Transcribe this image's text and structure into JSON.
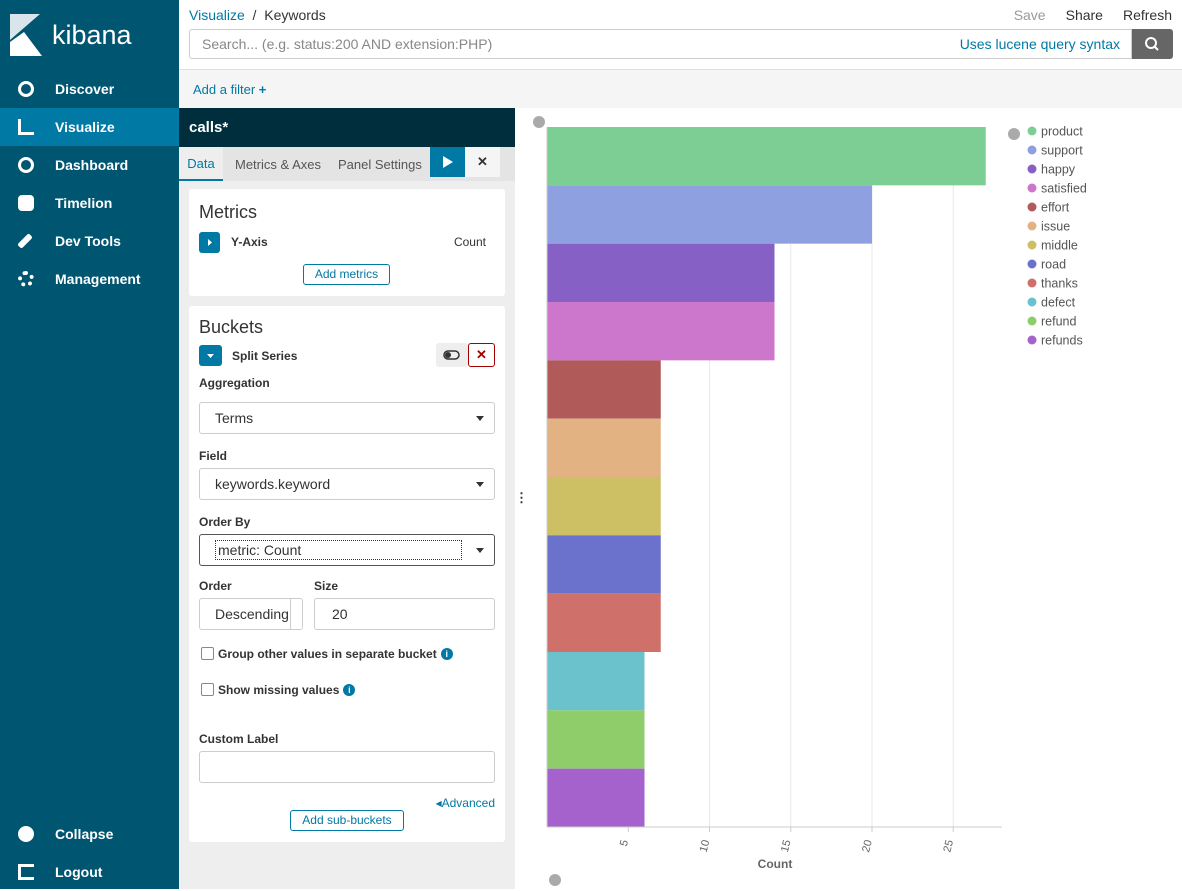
{
  "sidebar": {
    "brand": "kibana",
    "nav": [
      "Discover",
      "Visualize",
      "Dashboard",
      "Timelion",
      "Dev Tools",
      "Management"
    ],
    "footer": [
      "Collapse",
      "Logout"
    ]
  },
  "header": {
    "breadcrumbs": [
      "Visualize",
      "Keywords"
    ],
    "actions": [
      "Save",
      "Share",
      "Refresh"
    ],
    "search_placeholder": "Search... (e.g. status:200 AND extension:PHP)",
    "query_syntax": "Uses lucene query syntax",
    "add_filter": "Add a filter"
  },
  "editor": {
    "index": "calls*",
    "tabs": [
      "Data",
      "Metrics & Axes",
      "Panel Settings"
    ],
    "metrics": {
      "title": "Metrics",
      "axis": "Y-Axis",
      "aggregation": "Count",
      "add_button": "Add metrics"
    },
    "buckets": {
      "title": "Buckets",
      "type": "Split Series",
      "aggregation_label": "Aggregation",
      "aggregation": "Terms",
      "field_label": "Field",
      "field": "keywords.keyword",
      "order_by_label": "Order By",
      "order_by": "metric: Count",
      "order_label": "Order",
      "order": "Descending",
      "size_label": "Size",
      "size": 20,
      "group_other": "Group other values in separate bucket",
      "show_missing": "Show missing values",
      "custom_label": "Custom Label",
      "advanced": "Advanced",
      "add_button": "Add sub-buckets"
    }
  },
  "chart_data": {
    "type": "hbar",
    "categories": [
      "product",
      "support",
      "happy",
      "satisfied",
      "effort",
      "issue",
      "middle",
      "road",
      "thanks",
      "defect",
      "refund",
      "refunds"
    ],
    "values": [
      27,
      20,
      14,
      14,
      7,
      7,
      7,
      7,
      7,
      6,
      6,
      6
    ],
    "colors": [
      "#7dce95",
      "#8fa0e0",
      "#8760c6",
      "#cc77cc",
      "#b05a5a",
      "#e2b282",
      "#cdbf63",
      "#6a72cc",
      "#d0706a",
      "#6cc2cc",
      "#8fcd6b",
      "#a562cc"
    ],
    "xlabel": "Count",
    "xlim": [
      0,
      28
    ],
    "xticks": [
      5,
      10,
      15,
      20,
      25
    ],
    "grid": true,
    "legend": "right"
  }
}
